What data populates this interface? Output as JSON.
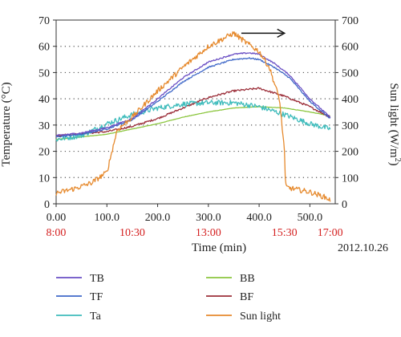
{
  "chart_data": {
    "type": "line",
    "xlabel": "Time (min)",
    "ylabel": "Temperature (°C)",
    "ylabel_right_prefix": "Sun light (W/m",
    "ylabel_right_sup": "2",
    "ylabel_right_suffix": ")",
    "date": "2012.10.26",
    "xlim": [
      0,
      550
    ],
    "ylim": [
      0,
      70
    ],
    "ylim_right": [
      0,
      700
    ],
    "x_ticks": [
      {
        "value": 0,
        "label": "0.00"
      },
      {
        "value": 100,
        "label": "100.0"
      },
      {
        "value": 200,
        "label": "200.0"
      },
      {
        "value": 300,
        "label": "300.0"
      },
      {
        "value": 400,
        "label": "400.0"
      },
      {
        "value": 500,
        "label": "500.0"
      }
    ],
    "time_labels": [
      {
        "value": 0,
        "label": "8:00"
      },
      {
        "value": 150,
        "label": "10:30"
      },
      {
        "value": 300,
        "label": "13:00"
      },
      {
        "value": 450,
        "label": "15:30"
      },
      {
        "value": 540,
        "label": "17:00"
      }
    ],
    "time_label_color": "#d42020",
    "y_ticks": [
      0,
      10,
      20,
      30,
      40,
      50,
      60,
      70
    ],
    "y_right_ticks": [
      0,
      100,
      200,
      300,
      400,
      500,
      600,
      700
    ],
    "grid": "horizontal dotted",
    "legend_placement": "bottom",
    "series": [
      {
        "name": "TB",
        "axis": "left",
        "color": "#6a4fc4",
        "noise": 0.25,
        "x": [
          0,
          50,
          100,
          150,
          200,
          250,
          300,
          350,
          380,
          400,
          430,
          460,
          500,
          540
        ],
        "y": [
          26,
          27,
          29,
          32.5,
          40,
          48,
          54,
          57,
          57.5,
          57,
          53.5,
          49,
          40,
          33
        ]
      },
      {
        "name": "TF",
        "axis": "left",
        "color": "#3f68c8",
        "noise": 0.25,
        "x": [
          0,
          50,
          100,
          150,
          200,
          250,
          300,
          350,
          380,
          400,
          430,
          460,
          500,
          540
        ],
        "y": [
          25.5,
          26.5,
          28.5,
          32,
          39,
          46.5,
          52,
          55,
          55.5,
          55,
          52,
          48,
          39,
          32.5
        ]
      },
      {
        "name": "Ta",
        "axis": "left",
        "color": "#3fbcbc",
        "noise": 1.0,
        "x": [
          0,
          50,
          100,
          150,
          200,
          250,
          300,
          350,
          400,
          450,
          500,
          540
        ],
        "y": [
          24.5,
          26,
          30.5,
          34,
          36.5,
          38,
          38.5,
          38.5,
          37,
          34,
          30.5,
          28.5
        ]
      },
      {
        "name": "BB",
        "axis": "left",
        "color": "#8cc63f",
        "noise": 0.05,
        "x": [
          0,
          100,
          150,
          200,
          250,
          300,
          350,
          400,
          450,
          500,
          540
        ],
        "y": [
          24.5,
          26.5,
          28.5,
          30.5,
          33,
          35,
          36.5,
          37,
          36.5,
          35,
          33.5
        ]
      },
      {
        "name": "BF",
        "axis": "left",
        "color": "#9c2f3a",
        "noise": 0.35,
        "x": [
          0,
          100,
          150,
          200,
          250,
          300,
          350,
          400,
          450,
          500,
          540
        ],
        "y": [
          26,
          27.5,
          29.5,
          32.5,
          36.5,
          40.5,
          43,
          44,
          41,
          37,
          33
        ]
      },
      {
        "name": "Sun light",
        "axis": "right",
        "color": "#e68a2e",
        "noise": 10,
        "x": [
          0,
          40,
          70,
          100,
          120,
          150,
          200,
          250,
          300,
          350,
          370,
          400,
          420,
          440,
          450,
          452,
          460,
          500,
          530,
          540
        ],
        "y": [
          40,
          60,
          80,
          120,
          280,
          330,
          430,
          520,
          600,
          650,
          620,
          580,
          520,
          400,
          200,
          65,
          60,
          45,
          25,
          15
        ]
      }
    ],
    "annotations": [
      {
        "type": "arrow",
        "from": [
          365,
          650
        ],
        "to": [
          450,
          650
        ],
        "axis": "right",
        "color": "#111111"
      }
    ]
  }
}
